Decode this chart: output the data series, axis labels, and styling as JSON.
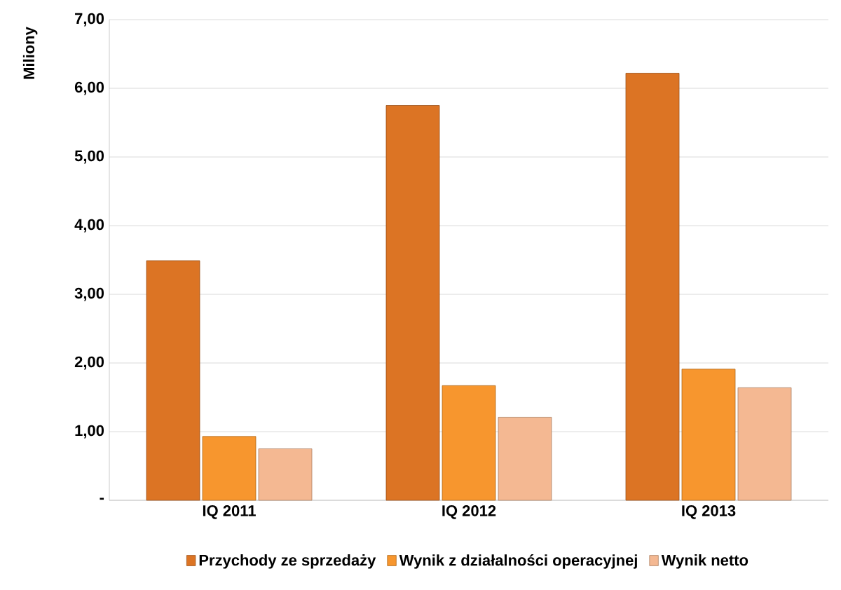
{
  "chart_data": {
    "type": "bar",
    "ylabel": "Miliony",
    "categories": [
      "IQ 2011",
      "IQ 2012",
      "IQ 2013"
    ],
    "series": [
      {
        "name": "Przychody ze sprzedaży",
        "color": "#dc7424",
        "values": [
          3.49,
          5.75,
          6.22
        ]
      },
      {
        "name": "Wynik z działalności operacyjnej",
        "color": "#f7962e",
        "values": [
          0.93,
          1.67,
          1.91
        ]
      },
      {
        "name": "Wynik netto",
        "color": "#f4b892",
        "values": [
          0.75,
          1.21,
          1.64
        ]
      }
    ],
    "ylim": [
      0,
      7
    ],
    "yticks": [
      {
        "value": 0,
        "label": "-"
      },
      {
        "value": 1,
        "label": "1,00"
      },
      {
        "value": 2,
        "label": "2,00"
      },
      {
        "value": 3,
        "label": "3,00"
      },
      {
        "value": 4,
        "label": "4,00"
      },
      {
        "value": 5,
        "label": "5,00"
      },
      {
        "value": 6,
        "label": "6,00"
      },
      {
        "value": 7,
        "label": "7,00"
      }
    ],
    "grid": "y",
    "legend": "bottom"
  }
}
